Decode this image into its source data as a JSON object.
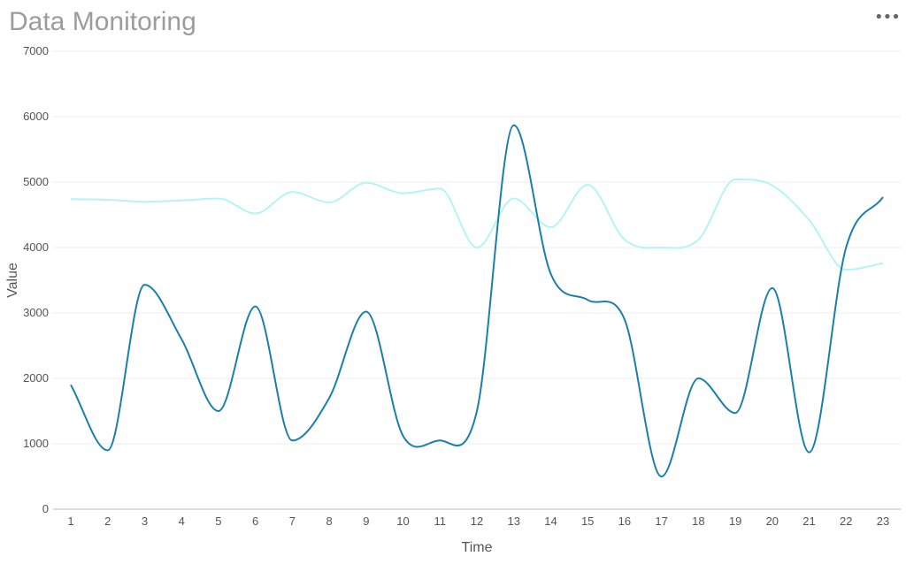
{
  "header": {
    "title": "Data Monitoring",
    "menu_icon": "ellipsis-icon",
    "menu_glyph": "•••"
  },
  "colors": {
    "series_dark": "#1a7fac",
    "series_light": "#b5f4f4",
    "grid": "#eeeeee",
    "axis": "#bbbbbb"
  },
  "chart_data": {
    "type": "line",
    "xlabel": "Time",
    "ylabel": "Value",
    "ylim": [
      0,
      7000
    ],
    "yticks": [
      0,
      1000,
      2000,
      3000,
      4000,
      5000,
      6000,
      7000
    ],
    "x": [
      1,
      2,
      3,
      4,
      5,
      6,
      7,
      8,
      9,
      10,
      11,
      12,
      13,
      14,
      15,
      16,
      17,
      18,
      19,
      20,
      21,
      22,
      23
    ],
    "grid": true,
    "legend": "none",
    "series": [
      {
        "color": "#1a7fac",
        "values": [
          1900,
          900,
          3430,
          2600,
          1500,
          3100,
          1050,
          1700,
          3020,
          1120,
          1050,
          1500,
          5870,
          3600,
          3200,
          2900,
          500,
          2000,
          1470,
          3380,
          870,
          4000,
          4770
        ]
      },
      {
        "color": "#b5f4f4",
        "values": [
          4740,
          4730,
          4700,
          4720,
          4750,
          4520,
          4850,
          4690,
          4990,
          4830,
          4900,
          4000,
          4750,
          4310,
          4960,
          4120,
          4000,
          4120,
          5040,
          4950,
          4420,
          3660,
          3760
        ]
      }
    ]
  }
}
